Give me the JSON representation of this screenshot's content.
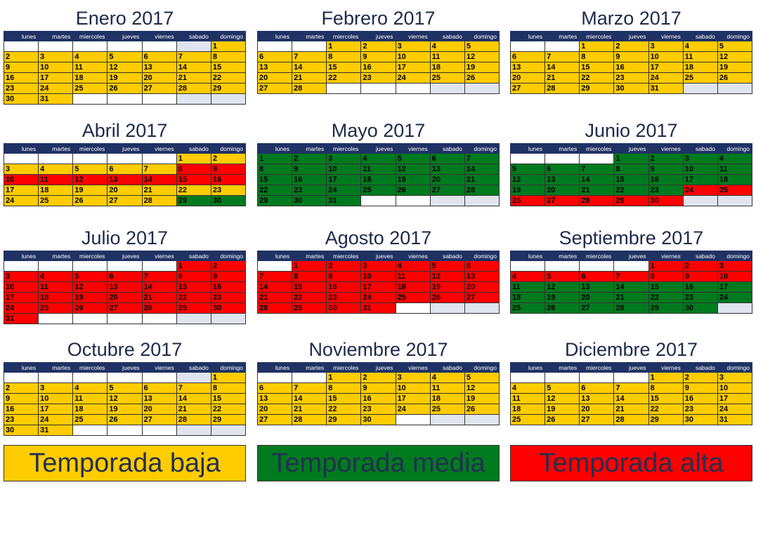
{
  "weekdays": [
    "lunes",
    "martes",
    "miercoles",
    "jueves",
    "viernes",
    "sabado",
    "domingo"
  ],
  "colors": {
    "baja": "#ffcc00",
    "media": "#007a1f",
    "alta": "#ff0000",
    "header": "#1f3264"
  },
  "months": [
    {
      "title": "Enero 2017",
      "offset": 6,
      "days": 31,
      "seasons": "YYYYYYYYYYYYYYYYYYYYYYYYYYYYYYY"
    },
    {
      "title": "Febrero 2017",
      "offset": 2,
      "days": 28,
      "seasons": "YYYYYYYYYYYYYYYYYYYYYYYYYYYY"
    },
    {
      "title": "Marzo 2017",
      "offset": 2,
      "days": 31,
      "seasons": "YYYYYYYYYYYYYYYYYYYYYYYYYYYYYYY"
    },
    {
      "title": "Abril 2017",
      "offset": 5,
      "days": 30,
      "seasons": "YYYYYYYRRRRRRRRRYYYYYYYYYYYYGG"
    },
    {
      "title": "Mayo 2017",
      "offset": 0,
      "days": 31,
      "seasons": "GGGGGGGGGGGGGGGGGGGGGGGGGGGGGGG"
    },
    {
      "title": "Junio 2017",
      "offset": 3,
      "days": 30,
      "seasons": "GGGGGGGGGGGGGGGGGGGGGGGRRRRRRR"
    },
    {
      "title": "Julio 2017",
      "offset": 5,
      "days": 31,
      "seasons": "RRRRRRRRRRRRRRRRRRRRRRRRRRRRRRR"
    },
    {
      "title": "Agosto 2017",
      "offset": 1,
      "days": 31,
      "seasons": "RRRRRRRRRRRRRRRRRRRRRRRRRRRRRRR"
    },
    {
      "title": "Septiembre 2017",
      "offset": 4,
      "days": 30,
      "seasons": "RRRRRRRRRRGGGGGGGGGGGGGGGGGGGG"
    },
    {
      "title": "Octubre 2017",
      "offset": 6,
      "days": 31,
      "seasons": "YYYYYYYYYYYYYYYYYYYYYYYYYYYYYYY"
    },
    {
      "title": "Noviembre 2017",
      "offset": 2,
      "days": 30,
      "seasons": "YYYYYYYYYYYYYYYYYYYYYYYYYYYYYY"
    },
    {
      "title": "Diciembre 2017",
      "offset": 4,
      "days": 31,
      "seasons": "YYYYYYYYYYYYYYYYYYYYYYYYYYYYYYY"
    }
  ],
  "legend": {
    "baja": {
      "label": "Temporada baja"
    },
    "media": {
      "label": "Temporada media"
    },
    "alta": {
      "label": "Temporada alta"
    }
  }
}
